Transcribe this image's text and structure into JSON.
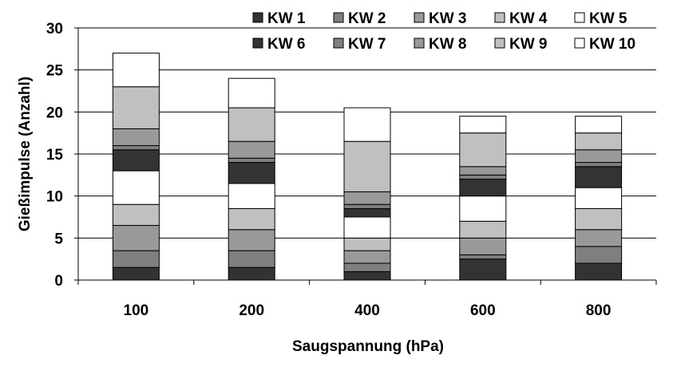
{
  "chart_data": {
    "type": "bar",
    "stacked": true,
    "title": "",
    "xlabel": "Saugspannung (hPa)",
    "ylabel": "Gießimpulse (Anzahl)",
    "ylim": [
      0,
      30
    ],
    "yticks": [
      0,
      5,
      10,
      15,
      20,
      25,
      30
    ],
    "grid": true,
    "legend_position": "top-right",
    "categories": [
      "100",
      "200",
      "400",
      "600",
      "800"
    ],
    "series": [
      {
        "name": "KW 1",
        "color": "#333333",
        "values": [
          1.5,
          1.5,
          1.0,
          2.5,
          2.0
        ]
      },
      {
        "name": "KW 2",
        "color": "#7f7f7f",
        "values": [
          2.0,
          2.0,
          1.0,
          0.5,
          2.0
        ]
      },
      {
        "name": "KW 3",
        "color": "#999999",
        "values": [
          3.0,
          2.5,
          1.5,
          2.0,
          2.0
        ]
      },
      {
        "name": "KW 4",
        "color": "#c0c0c0",
        "values": [
          2.5,
          2.5,
          1.5,
          2.0,
          2.5
        ]
      },
      {
        "name": "KW 5",
        "color": "#ffffff",
        "values": [
          4.0,
          3.0,
          2.5,
          3.0,
          2.5
        ]
      },
      {
        "name": "KW 6",
        "color": "#333333",
        "values": [
          2.5,
          2.5,
          1.0,
          2.0,
          2.5
        ]
      },
      {
        "name": "KW 7",
        "color": "#7f7f7f",
        "values": [
          0.5,
          0.5,
          0.5,
          0.5,
          0.5
        ]
      },
      {
        "name": "KW 8",
        "color": "#999999",
        "values": [
          2.0,
          2.0,
          1.5,
          1.0,
          1.5
        ]
      },
      {
        "name": "KW 9",
        "color": "#c0c0c0",
        "values": [
          5.0,
          4.0,
          6.0,
          4.0,
          2.0
        ]
      },
      {
        "name": "KW 10",
        "color": "#ffffff",
        "values": [
          4.0,
          3.5,
          4.0,
          2.0,
          2.0
        ]
      }
    ]
  }
}
